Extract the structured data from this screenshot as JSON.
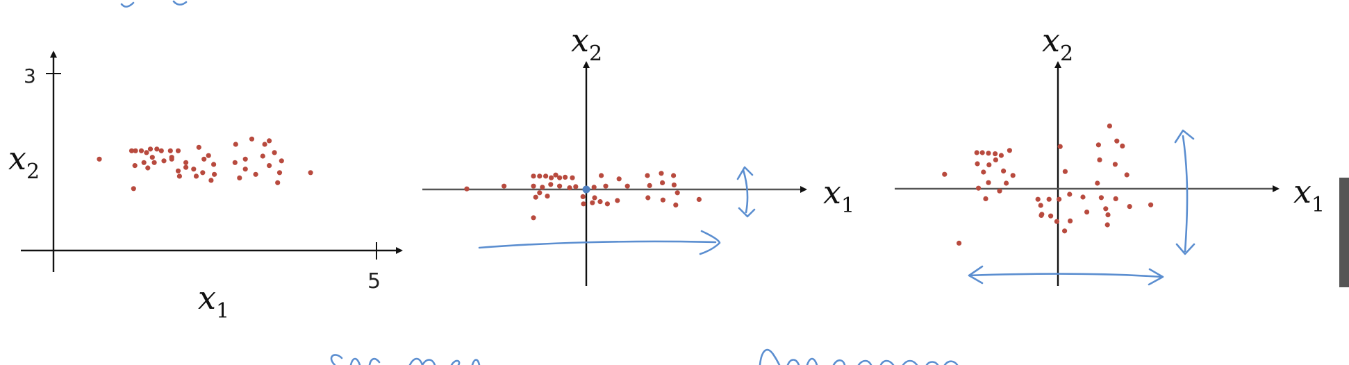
{
  "colors": {
    "points": "#b84a3e",
    "center_point": "#4f7fc0",
    "ink": "#5b8ed0",
    "axis": "#111111"
  },
  "plots": [
    {
      "x_label": {
        "var": "x",
        "sub": "1"
      },
      "y_label": {
        "var": "x",
        "sub": "2"
      },
      "y_tick": "3",
      "x_tick": "5"
    },
    {
      "x_label": {
        "var": "x",
        "sub": "1"
      },
      "y_label": {
        "var": "x",
        "sub": "2"
      }
    },
    {
      "x_label": {
        "var": "x",
        "sub": "1"
      },
      "y_label": {
        "var": "x",
        "sub": "2"
      }
    }
  ],
  "chart_data": [
    {
      "type": "scatter",
      "title": "",
      "xlabel": "x1",
      "ylabel": "x2",
      "xlim": [
        0,
        5
      ],
      "ylim": [
        0,
        3
      ],
      "points": [
        [
          0.71,
          1.55
        ],
        [
          1.21,
          1.69
        ],
        [
          1.27,
          1.69
        ],
        [
          1.36,
          1.69
        ],
        [
          1.44,
          1.66
        ],
        [
          1.5,
          1.72
        ],
        [
          1.6,
          1.72
        ],
        [
          1.67,
          1.69
        ],
        [
          1.81,
          1.69
        ],
        [
          1.93,
          1.69
        ],
        [
          2.25,
          1.75
        ],
        [
          1.26,
          1.44
        ],
        [
          1.4,
          1.49
        ],
        [
          1.53,
          1.58
        ],
        [
          1.71,
          1.52
        ],
        [
          1.83,
          1.55
        ],
        [
          2.05,
          1.49
        ],
        [
          2.33,
          1.55
        ],
        [
          2.48,
          1.46
        ],
        [
          1.93,
          1.35
        ],
        [
          2.05,
          1.41
        ],
        [
          2.17,
          1.38
        ],
        [
          2.31,
          1.32
        ],
        [
          2.49,
          1.29
        ],
        [
          1.95,
          1.26
        ],
        [
          2.21,
          1.26
        ],
        [
          2.44,
          1.19
        ],
        [
          1.24,
          1.05
        ],
        [
          1.46,
          1.4
        ],
        [
          1.56,
          1.49
        ],
        [
          1.83,
          1.58
        ],
        [
          2.4,
          1.61
        ],
        [
          2.82,
          1.8
        ],
        [
          3.07,
          1.89
        ],
        [
          3.27,
          1.8
        ],
        [
          3.34,
          1.86
        ],
        [
          2.81,
          1.49
        ],
        [
          2.97,
          1.55
        ],
        [
          3.24,
          1.6
        ],
        [
          3.42,
          1.66
        ],
        [
          3.53,
          1.52
        ],
        [
          2.97,
          1.38
        ],
        [
          3.34,
          1.44
        ],
        [
          3.5,
          1.32
        ],
        [
          2.88,
          1.23
        ],
        [
          3.13,
          1.29
        ],
        [
          3.47,
          1.15
        ],
        [
          3.98,
          1.32
        ]
      ]
    },
    {
      "type": "scatter",
      "title": "",
      "xlabel": "x1",
      "ylabel": "x2",
      "points": [
        [
          -2.15,
          0.01
        ],
        [
          -1.48,
          0.06
        ],
        [
          -0.95,
          0.24
        ],
        [
          -0.84,
          0.24
        ],
        [
          -0.73,
          0.24
        ],
        [
          -0.63,
          0.21
        ],
        [
          -0.55,
          0.26
        ],
        [
          -0.48,
          0.21
        ],
        [
          -0.38,
          0.22
        ],
        [
          -0.25,
          0.21
        ],
        [
          0.27,
          0.25
        ],
        [
          0.59,
          0.19
        ],
        [
          -0.95,
          0.06
        ],
        [
          -0.79,
          0.04
        ],
        [
          -0.64,
          0.09
        ],
        [
          -0.48,
          0.06
        ],
        [
          -0.3,
          0.03
        ],
        [
          -0.19,
          0.05
        ],
        [
          0.14,
          0.04
        ],
        [
          0.35,
          0.06
        ],
        [
          0.74,
          0.06
        ],
        [
          -0.91,
          -0.14
        ],
        [
          -0.7,
          -0.12
        ],
        [
          -0.06,
          -0.13
        ],
        [
          0.15,
          -0.15
        ],
        [
          -0.05,
          -0.26
        ],
        [
          0.11,
          -0.24
        ],
        [
          0.25,
          -0.22
        ],
        [
          0.38,
          -0.26
        ],
        [
          0.56,
          -0.2
        ],
        [
          -0.95,
          -0.51
        ],
        [
          -0.84,
          -0.06
        ],
        [
          1.1,
          0.25
        ],
        [
          1.35,
          0.29
        ],
        [
          1.57,
          0.25
        ],
        [
          1.14,
          0.07
        ],
        [
          1.37,
          0.12
        ],
        [
          1.58,
          0.08
        ],
        [
          1.64,
          -0.06
        ],
        [
          1.11,
          -0.15
        ],
        [
          1.38,
          -0.19
        ],
        [
          1.61,
          -0.28
        ],
        [
          2.03,
          -0.18
        ]
      ],
      "center_point": [
        0,
        0
      ]
    },
    {
      "type": "scatter",
      "title": "",
      "xlabel": "x1",
      "ylabel": "x2",
      "points": [
        [
          -2.04,
          0.26
        ],
        [
          -1.46,
          0.65
        ],
        [
          -1.36,
          0.65
        ],
        [
          -1.25,
          0.64
        ],
        [
          -1.13,
          0.63
        ],
        [
          -1.02,
          0.6
        ],
        [
          -0.87,
          0.69
        ],
        [
          0.04,
          0.76
        ],
        [
          0.73,
          0.79
        ],
        [
          0.93,
          1.13
        ],
        [
          1.06,
          0.86
        ],
        [
          1.16,
          0.77
        ],
        [
          -1.45,
          0.45
        ],
        [
          -1.24,
          0.43
        ],
        [
          -1.12,
          0.52
        ],
        [
          -1.34,
          0.3
        ],
        [
          -0.98,
          0.32
        ],
        [
          -1.25,
          0.11
        ],
        [
          -0.81,
          0.24
        ],
        [
          0.13,
          0.31
        ],
        [
          0.75,
          0.52
        ],
        [
          1.03,
          0.44
        ],
        [
          1.24,
          0.25
        ],
        [
          0.71,
          0.1
        ],
        [
          -0.93,
          0.1
        ],
        [
          -1.05,
          -0.04
        ],
        [
          -1.43,
          0.01
        ],
        [
          -1.3,
          -0.18
        ],
        [
          0.21,
          -0.1
        ],
        [
          0.45,
          -0.15
        ],
        [
          0.78,
          -0.16
        ],
        [
          1.04,
          -0.18
        ],
        [
          -0.36,
          -0.19
        ],
        [
          -0.16,
          -0.19
        ],
        [
          0.02,
          -0.19
        ],
        [
          -0.31,
          -0.3
        ],
        [
          0.86,
          -0.36
        ],
        [
          -0.29,
          -0.46
        ],
        [
          0.52,
          -0.42
        ],
        [
          1.29,
          -0.32
        ],
        [
          1.67,
          -0.29
        ],
        [
          -0.3,
          -0.48
        ],
        [
          -0.13,
          -0.49
        ],
        [
          -0.02,
          -0.59
        ],
        [
          0.22,
          -0.58
        ],
        [
          0.9,
          -0.47
        ],
        [
          0.12,
          -0.76
        ],
        [
          0.89,
          -0.65
        ],
        [
          -1.78,
          -0.98
        ]
      ]
    }
  ]
}
